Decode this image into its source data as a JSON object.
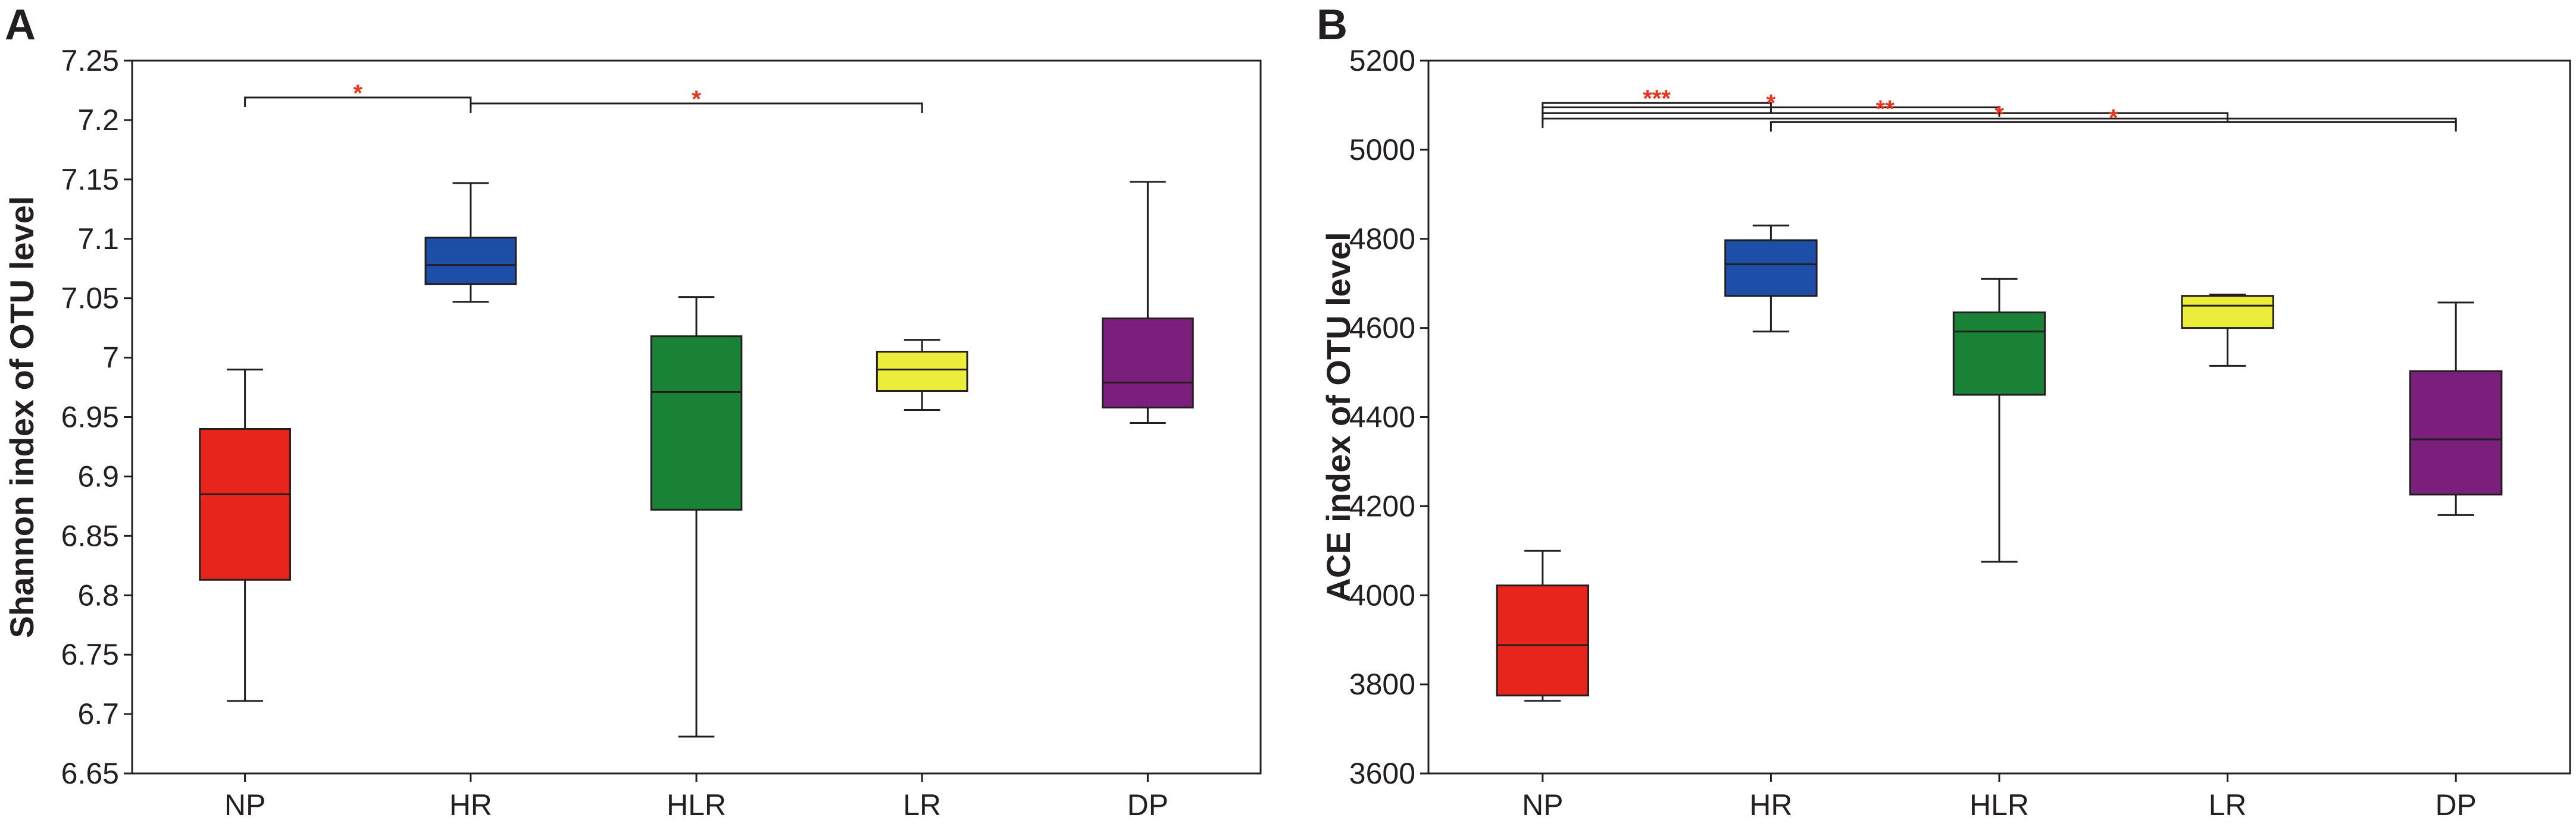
{
  "chart_data": [
    {
      "panel": "A",
      "type": "box",
      "title": "",
      "xlabel": "",
      "ylabel": "Shannon index of OTU level",
      "ylim": [
        6.65,
        7.25
      ],
      "yticks": [
        6.65,
        6.7,
        6.75,
        6.8,
        6.85,
        6.9,
        6.95,
        7,
        7.05,
        7.1,
        7.15,
        7.2,
        7.25
      ],
      "ytick_labels": [
        "6.65",
        "6.7",
        "6.75",
        "6.8",
        "6.85",
        "6.9",
        "6.95",
        "7",
        "7.05",
        "7.1",
        "7.15",
        "7.2",
        "7.25"
      ],
      "categories": [
        "NP",
        "HR",
        "HLR",
        "LR",
        "DP"
      ],
      "colors": [
        "#e8251c",
        "#1e4fa8",
        "#1a8237",
        "#ecec3a",
        "#7a1f7c"
      ],
      "boxes": [
        {
          "min": 6.711,
          "q1": 6.813,
          "median": 6.885,
          "q3": 6.94,
          "max": 6.99
        },
        {
          "min": 7.047,
          "q1": 7.062,
          "median": 7.078,
          "q3": 7.101,
          "max": 7.147
        },
        {
          "min": 6.681,
          "q1": 6.872,
          "median": 6.971,
          "q3": 7.018,
          "max": 7.051
        },
        {
          "min": 6.956,
          "q1": 6.972,
          "median": 6.99,
          "q3": 7.005,
          "max": 7.015
        },
        {
          "min": 6.945,
          "q1": 6.958,
          "median": 6.979,
          "q3": 7.033,
          "max": 7.148
        }
      ],
      "significance": [
        {
          "from": "NP",
          "to": "HR",
          "y": 7.219,
          "label": "*"
        },
        {
          "from": "HR",
          "to": "LR",
          "y": 7.214,
          "label": "*"
        }
      ]
    },
    {
      "panel": "B",
      "type": "box",
      "title": "",
      "xlabel": "",
      "ylabel": "ACE index of OTU level",
      "ylim": [
        3600,
        5200
      ],
      "yticks": [
        3600,
        3800,
        4000,
        4200,
        4400,
        4600,
        4800,
        5000,
        5200
      ],
      "ytick_labels": [
        "3600",
        "3800",
        "4000",
        "4200",
        "4400",
        "4600",
        "4800",
        "5000",
        "5200"
      ],
      "categories": [
        "NP",
        "HR",
        "HLR",
        "LR",
        "DP"
      ],
      "colors": [
        "#e8251c",
        "#1e4fa8",
        "#1a8237",
        "#ecec3a",
        "#7a1f7c"
      ],
      "boxes": [
        {
          "min": 3763,
          "q1": 3775,
          "median": 3888,
          "q3": 4022,
          "max": 4100
        },
        {
          "min": 4592,
          "q1": 4672,
          "median": 4743,
          "q3": 4797,
          "max": 4830
        },
        {
          "min": 4075,
          "q1": 4450,
          "median": 4592,
          "q3": 4635,
          "max": 4710
        },
        {
          "min": 4515,
          "q1": 4600,
          "median": 4650,
          "q3": 4672,
          "max": 4675
        },
        {
          "min": 4180,
          "q1": 4226,
          "median": 4350,
          "q3": 4503,
          "max": 4657
        }
      ],
      "significance": [
        {
          "from": "NP",
          "to": "HR",
          "y": 5105,
          "label": "***"
        },
        {
          "from": "NP",
          "to": "HLR",
          "y": 5095,
          "label": "*"
        },
        {
          "from": "NP",
          "to": "LR",
          "y": 5082,
          "label": "**"
        },
        {
          "from": "NP",
          "to": "DP",
          "y": 5070,
          "label": "*"
        },
        {
          "from": "HR",
          "to": "DP",
          "y": 5062,
          "label": "*"
        }
      ]
    }
  ]
}
